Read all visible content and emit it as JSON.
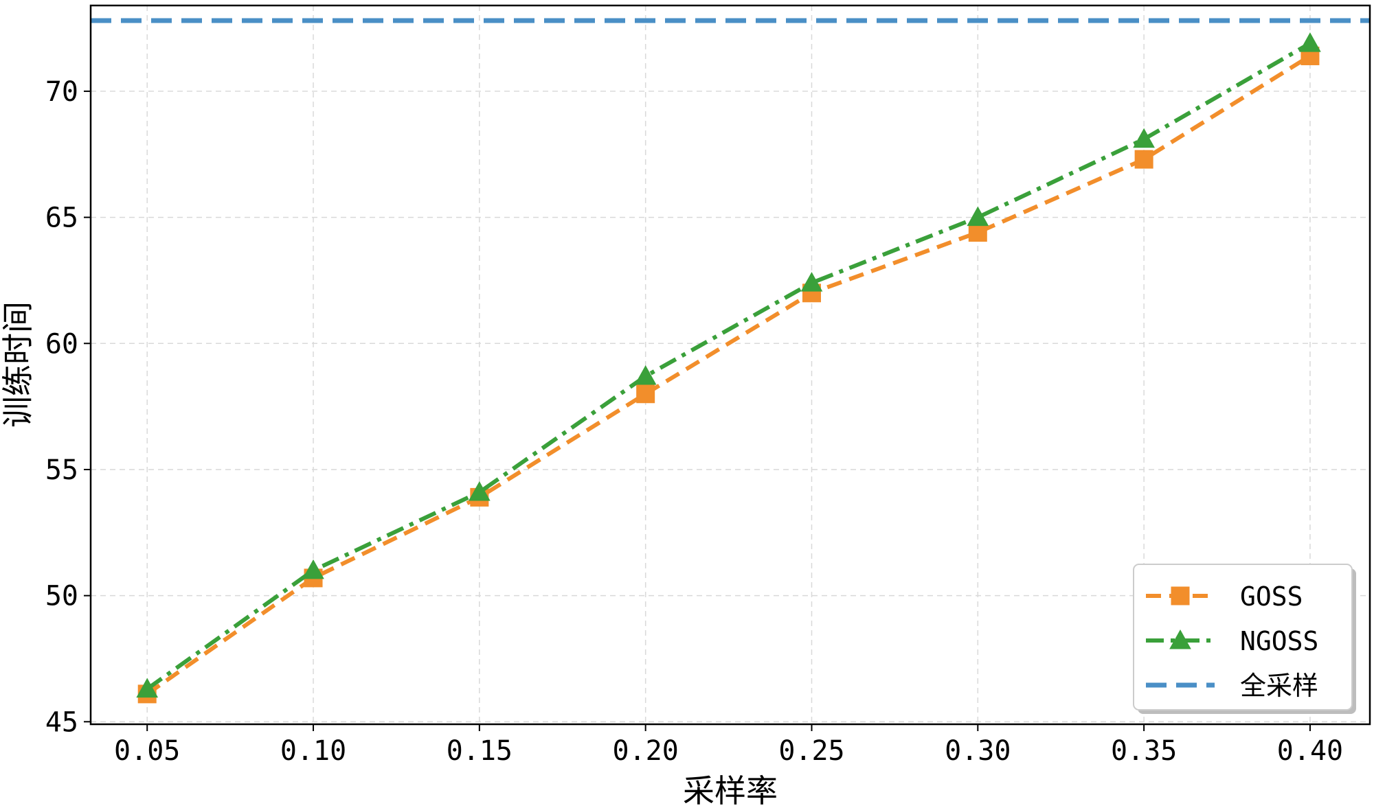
{
  "chart_data": {
    "type": "line",
    "xlabel": "采样率",
    "ylabel": "训练时间",
    "x": [
      0.05,
      0.1,
      0.15,
      0.2,
      0.25,
      0.3,
      0.35,
      0.4
    ],
    "x_tick_labels": [
      "0.05",
      "0.10",
      "0.15",
      "0.20",
      "0.25",
      "0.30",
      "0.35",
      "0.40"
    ],
    "y_ticks": [
      45,
      50,
      55,
      60,
      65,
      70
    ],
    "xlim": [
      0.033,
      0.418
    ],
    "ylim": [
      44.9,
      73.4
    ],
    "grid": true,
    "legend_position": "bottom-right",
    "series": [
      {
        "name": "GOSS",
        "values": [
          46.1,
          50.7,
          53.9,
          58.0,
          62.0,
          64.4,
          67.3,
          71.4
        ],
        "color": "#f28e2b",
        "marker": "square",
        "linestyle": "dashed"
      },
      {
        "name": "NGOSS",
        "values": [
          46.3,
          51.0,
          54.1,
          58.7,
          62.4,
          65.0,
          68.1,
          71.9
        ],
        "color": "#3aa03a",
        "marker": "triangle",
        "linestyle": "dashdot"
      },
      {
        "name": "全采样",
        "type": "hline",
        "value": 72.8,
        "color": "#4a8fc6",
        "linestyle": "dashed"
      }
    ]
  }
}
